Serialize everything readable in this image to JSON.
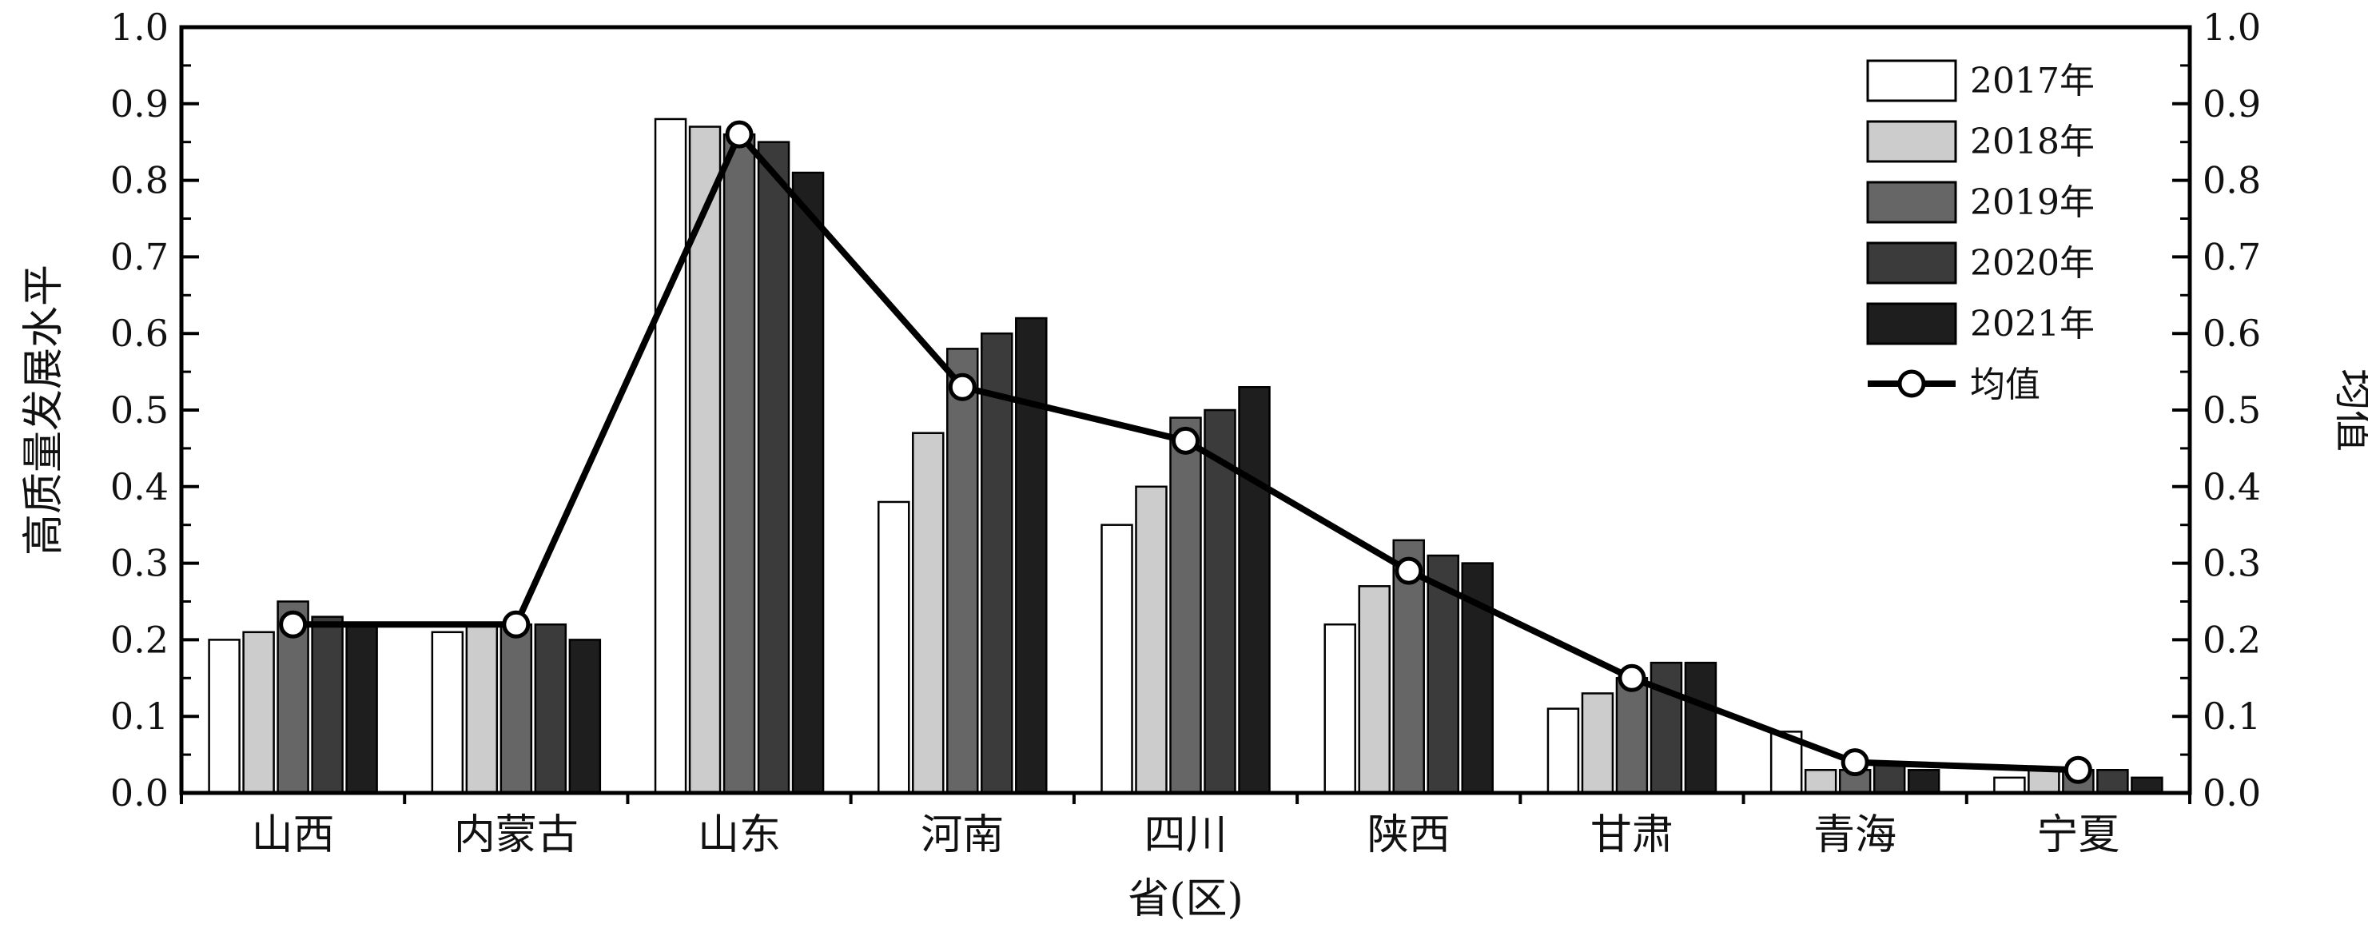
{
  "chart_data": {
    "type": "bar",
    "title": "",
    "xlabel": "省(区)",
    "ylabel": "高质量发展水平",
    "y2label": "均值",
    "ylim": [
      0,
      1.0
    ],
    "y2lim": [
      0,
      1.0
    ],
    "yticks": [
      "0.0",
      "0.1",
      "0.2",
      "0.3",
      "0.4",
      "0.5",
      "0.6",
      "0.7",
      "0.8",
      "0.9",
      "1.0"
    ],
    "categories": [
      "山西",
      "内蒙古",
      "山东",
      "河南",
      "四川",
      "陕西",
      "甘肃",
      "青海",
      "宁夏"
    ],
    "series": [
      {
        "name": "2017年",
        "color": "#ffffff",
        "values": [
          0.2,
          0.21,
          0.88,
          0.38,
          0.35,
          0.22,
          0.11,
          0.08,
          0.02
        ]
      },
      {
        "name": "2018年",
        "color": "#cccccc",
        "values": [
          0.21,
          0.22,
          0.87,
          0.47,
          0.4,
          0.27,
          0.13,
          0.03,
          0.03
        ]
      },
      {
        "name": "2019年",
        "color": "#666666",
        "values": [
          0.25,
          0.22,
          0.86,
          0.58,
          0.49,
          0.33,
          0.15,
          0.03,
          0.03
        ]
      },
      {
        "name": "2020年",
        "color": "#3b3b3b",
        "values": [
          0.23,
          0.22,
          0.85,
          0.6,
          0.5,
          0.31,
          0.17,
          0.04,
          0.03
        ]
      },
      {
        "name": "2021年",
        "color": "#1e1e1e",
        "values": [
          0.22,
          0.2,
          0.81,
          0.62,
          0.53,
          0.3,
          0.17,
          0.03,
          0.02
        ]
      }
    ],
    "line_series": {
      "name": "均值",
      "axis": "right",
      "values": [
        0.22,
        0.22,
        0.86,
        0.53,
        0.46,
        0.29,
        0.15,
        0.04,
        0.03
      ]
    },
    "legend_position": "top-right",
    "grid": false
  }
}
